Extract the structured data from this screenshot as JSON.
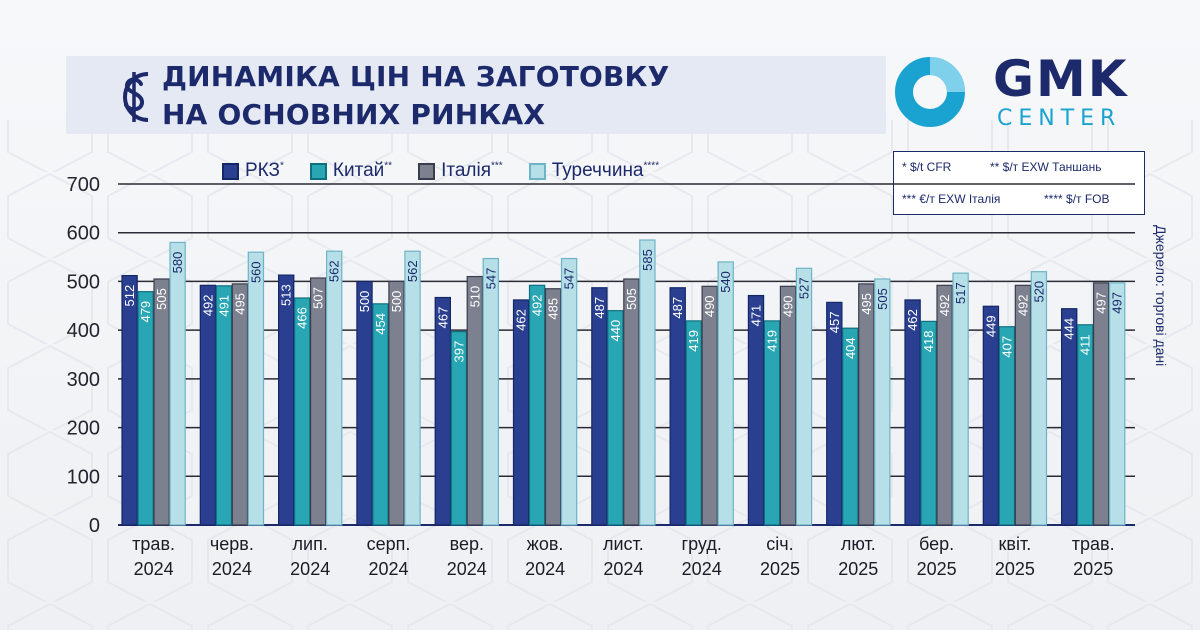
{
  "header": {
    "title_line1": "ДИНАМІКА ЦІН НА ЗАГОТОВКУ",
    "title_line2": "НА ОСНОВНИХ РИНКАХ",
    "icon": "dollar-icon"
  },
  "logo": {
    "text_main": "GMK",
    "text_sub": "CENTER"
  },
  "notes": {
    "n1": "* $/t CFR",
    "n2": "** $/т EXW Таншань",
    "n3": "*** €/т EXW Італія",
    "n4": "**** $/т FOB"
  },
  "source": "Джерело: торгові дані",
  "colors": {
    "rkz": "#2a3f8f",
    "china": "#28a6b4",
    "italy": "#7d818f",
    "turkey": "#b6dfe8",
    "text": "#1c2a6b"
  },
  "chart_data": {
    "type": "bar",
    "categories": [
      [
        "трав.",
        "2024"
      ],
      [
        "черв.",
        "2024"
      ],
      [
        "лип.",
        "2024"
      ],
      [
        "серп.",
        "2024"
      ],
      [
        "вер.",
        "2024"
      ],
      [
        "жов.",
        "2024"
      ],
      [
        "лист.",
        "2024"
      ],
      [
        "груд.",
        "2024"
      ],
      [
        "січ.",
        "2025"
      ],
      [
        "лют.",
        "2025"
      ],
      [
        "бер.",
        "2025"
      ],
      [
        "квіт.",
        "2025"
      ],
      [
        "трав.",
        "2025"
      ]
    ],
    "series": [
      {
        "name": "РКЗ",
        "marker": "*",
        "values": [
          512,
          492,
          513,
          500,
          467,
          462,
          487,
          487,
          471,
          457,
          462,
          449,
          444
        ]
      },
      {
        "name": "Китай",
        "marker": "**",
        "values": [
          479,
          491,
          466,
          454,
          397,
          492,
          440,
          419,
          419,
          404,
          418,
          407,
          411
        ]
      },
      {
        "name": "Італія",
        "marker": "***",
        "values": [
          505,
          495,
          507,
          500,
          510,
          485,
          505,
          490,
          490,
          495,
          492,
          492,
          497
        ]
      },
      {
        "name": "Туреччина",
        "marker": "****",
        "values": [
          580,
          560,
          562,
          562,
          547,
          547,
          585,
          540,
          527,
          505,
          517,
          520,
          497
        ]
      }
    ],
    "yticks": [
      0,
      100,
      200,
      300,
      400,
      500,
      600,
      700
    ],
    "ylim": [
      0,
      700
    ],
    "grid": true,
    "legend_position": "top"
  }
}
